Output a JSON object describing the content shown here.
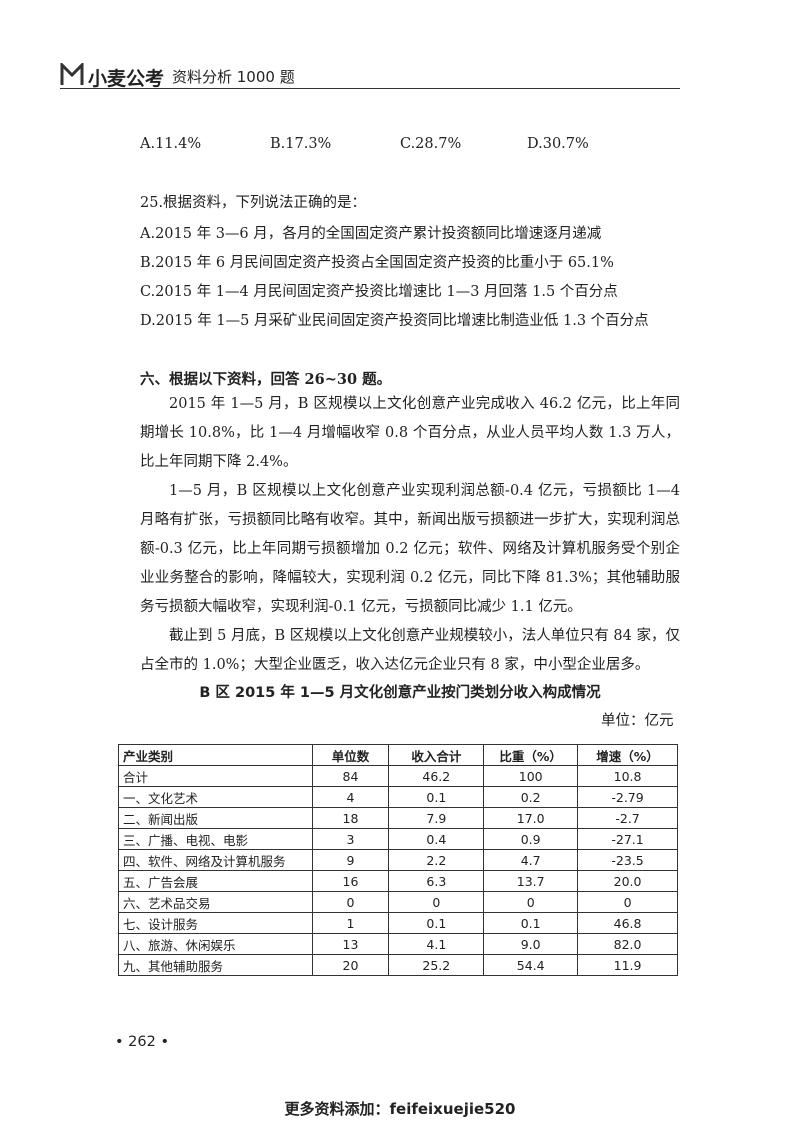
{
  "header": {
    "logo": "小麦公考",
    "title": "资料分析 1000 题"
  },
  "q24_options": [
    "A.11.4%",
    "B.17.3%",
    "C.28.7%",
    "D.30.7%"
  ],
  "q25": {
    "stem": "25.根据资料，下列说法正确的是：",
    "options": [
      "A.2015 年 3—6 月，各月的全国固定资产累计投资额同比增速逐月递减",
      "B.2015 年 6 月民间固定资产投资占全国固定资产投资的比重小于 65.1%",
      "C.2015 年 1—4 月民间固定资产投资比增速比 1—3 月回落 1.5 个百分点",
      "D.2015 年 1—5 月采矿业民间固定资产投资同比增速比制造业低 1.3 个百分点"
    ]
  },
  "section": {
    "heading": "六、根据以下资料，回答 26~30 题。",
    "paragraphs": [
      "2015 年 1—5 月，B 区规模以上文化创意产业完成收入 46.2 亿元，比上年同期增长 10.8%，比 1—4 月增幅收窄 0.8 个百分点，从业人员平均人数 1.3 万人，比上年同期下降 2.4%。",
      "1—5 月，B 区规模以上文化创意产业实现利润总额-0.4 亿元，亏损额比 1—4 月略有扩张，亏损额同比略有收窄。其中，新闻出版亏损额进一步扩大，实现利润总额-0.3 亿元，比上年同期亏损额增加 0.2 亿元；软件、网络及计算机服务受个别企业业务整合的影响，降幅较大，实现利润 0.2 亿元，同比下降 81.3%；其他辅助服务亏损额大幅收窄，实现利润-0.1 亿元，亏损额同比减少 1.1 亿元。",
      "截止到 5 月底，B 区规模以上文化创意产业规模较小，法人单位只有 84 家，仅占全市的 1.0%；大型企业匮乏，收入达亿元企业只有 8 家，中小型企业居多。"
    ]
  },
  "table": {
    "title": "B 区 2015 年 1—5 月文化创意产业按门类划分收入构成情况",
    "unit": "单位：亿元",
    "header": [
      "产业类别",
      "单位数",
      "收入合计",
      "比重（%）",
      "增速（%）"
    ],
    "rows": [
      [
        "合计",
        "84",
        "46.2",
        "100",
        "10.8"
      ],
      [
        "一、文化艺术",
        "4",
        "0.1",
        "0.2",
        "-2.79"
      ],
      [
        "二、新闻出版",
        "18",
        "7.9",
        "17.0",
        "-2.7"
      ],
      [
        "三、广播、电视、电影",
        "3",
        "0.4",
        "0.9",
        "-27.1"
      ],
      [
        "四、软件、网络及计算机服务",
        "9",
        "2.2",
        "4.7",
        "-23.5"
      ],
      [
        "五、广告会展",
        "16",
        "6.3",
        "13.7",
        "20.0"
      ],
      [
        "六、艺术品交易",
        "0",
        "0",
        "0",
        "0"
      ],
      [
        "七、设计服务",
        "1",
        "0.1",
        "0.1",
        "46.8"
      ],
      [
        "八、旅游、休闲娱乐",
        "13",
        "4.1",
        "9.0",
        "82.0"
      ],
      [
        "九、其他辅助服务",
        "20",
        "25.2",
        "54.4",
        "11.9"
      ]
    ]
  },
  "page_number": "• 262 •",
  "footer": "更多资料添加：feifeixuejie520"
}
